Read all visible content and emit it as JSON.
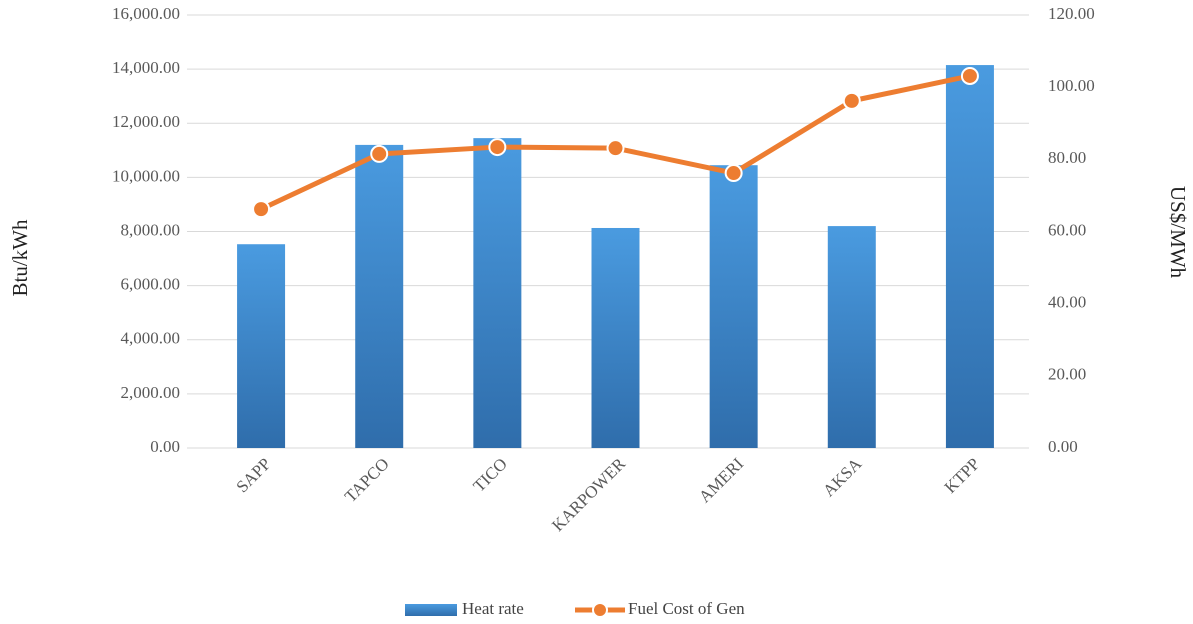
{
  "chart_data": {
    "type": "bar_line",
    "categories": [
      "SAPP",
      "TAPCO",
      "TICO",
      "KARPOWER",
      "AMERI",
      "AKSA",
      "KTPP"
    ],
    "series": [
      {
        "name": "Heat rate",
        "type": "bar",
        "color": "#4a9be0",
        "values": [
          7530,
          11200,
          11450,
          8130,
          10450,
          8200,
          14150
        ]
      },
      {
        "name": "Fuel Cost of Gen",
        "type": "line",
        "axis": "y2",
        "color": "#ed7d31",
        "values": [
          66.2,
          81.5,
          83.4,
          83.1,
          76.2,
          96.2,
          103.1
        ]
      }
    ],
    "y_label": "Btu/kWh",
    "y2_label": "US$/MWh",
    "ylim": [
      0,
      16000
    ],
    "yticks": [
      {
        "value": 0,
        "label": "0.00"
      },
      {
        "value": 2000,
        "label": "2,000.00"
      },
      {
        "value": 4000,
        "label": "4,000.00"
      },
      {
        "value": 6000,
        "label": "6,000.00"
      },
      {
        "value": 8000,
        "label": "8,000.00"
      },
      {
        "value": 10000,
        "label": "10,000.00"
      },
      {
        "value": 12000,
        "label": "12,000.00"
      },
      {
        "value": 14000,
        "label": "14,000.00"
      },
      {
        "value": 16000,
        "label": "16,000.00"
      }
    ],
    "y2lim": [
      0,
      120
    ],
    "y2ticks": [
      {
        "value": 0,
        "label": "0.00"
      },
      {
        "value": 20,
        "label": "20.00"
      },
      {
        "value": 40,
        "label": "40.00"
      },
      {
        "value": 60,
        "label": "60.00"
      },
      {
        "value": 80,
        "label": "80.00"
      },
      {
        "value": 100,
        "label": "100.00"
      },
      {
        "value": 120,
        "label": "120.00"
      }
    ],
    "grid": true,
    "legend": "bottom"
  }
}
